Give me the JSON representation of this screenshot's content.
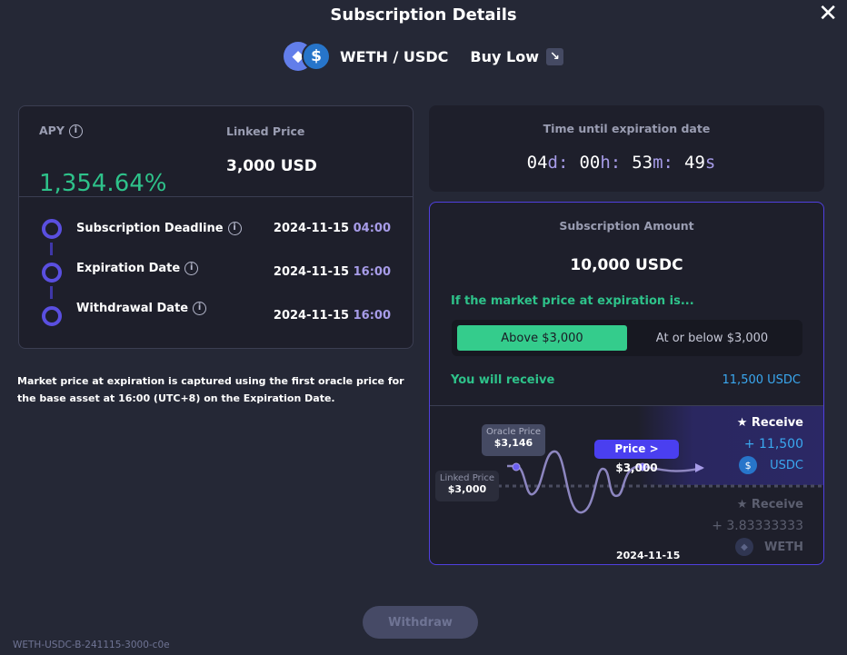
{
  "title": "Subscription Details",
  "pair": {
    "label": "WETH / USDC",
    "direction": "Buy Low",
    "base_icon": "eth-icon",
    "quote_icon": "usdc-icon"
  },
  "summary": {
    "apy_label": "APY",
    "apy_value": "1,354.64%",
    "linked_price_label": "Linked Price",
    "linked_price_value": "3,000 USD"
  },
  "timeline": [
    {
      "label": "Subscription Deadline",
      "date": "2024-11-15",
      "time": "04:00"
    },
    {
      "label": "Expiration Date",
      "date": "2024-11-15",
      "time": "16:00"
    },
    {
      "label": "Withdrawal Date",
      "date": "2024-11-15",
      "time": "16:00"
    }
  ],
  "note": "Market price at expiration is captured using the first oracle price for the base asset at 16:00 (UTC+8) on the Expiration Date.",
  "countdown": {
    "label": "Time until expiration date",
    "days": "04",
    "hours": "00",
    "minutes": "53",
    "seconds": "49",
    "d": "d:",
    "h": "h:",
    "m": "m:",
    "s": "s"
  },
  "subscription": {
    "label": "Subscription Amount",
    "amount": "10,000 USDC",
    "condition": "If the market price at expiration is...",
    "options": [
      "Above $3,000",
      "At or below $3,000"
    ],
    "selected": 0,
    "receive_label": "You will receive",
    "receive_value": "11,500 USDC"
  },
  "chart": {
    "oracle_label": "Oracle Price",
    "oracle_value": "$3,146",
    "linked_label": "Linked Price",
    "linked_value": "$3,000",
    "condition_tag": "Price > $3,000",
    "date": "2024-11-15",
    "up": {
      "label": "Receive",
      "amount": "+ 11,500",
      "asset": "USDC"
    },
    "down": {
      "label": "Receive",
      "amount": "+ 3.83333333",
      "asset": "WETH"
    }
  },
  "footer": {
    "withdraw": "Withdraw",
    "product_id": "WETH-USDC-B-241115-3000-c0e"
  },
  "colors": {
    "accent": "#5a4fe0",
    "green": "#2ec28a",
    "blue": "#3aa8f0"
  }
}
